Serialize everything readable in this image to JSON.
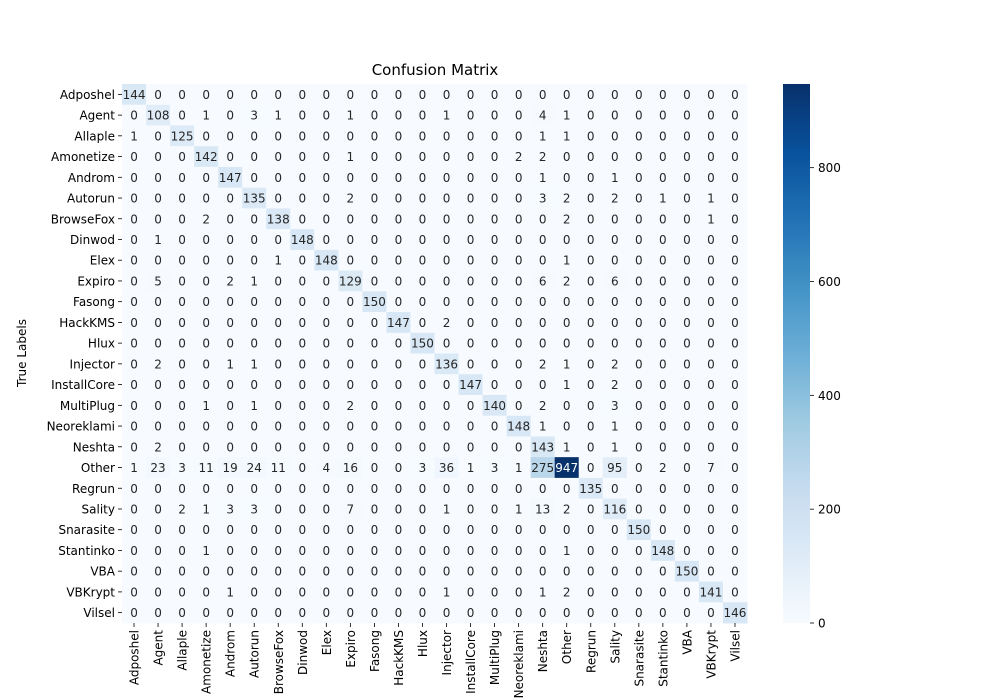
{
  "chart_data": {
    "type": "heatmap",
    "title": "Confusion Matrix",
    "ylabel": "True Labels",
    "xlabel": "",
    "labels": [
      "Adposhel",
      "Agent",
      "Allaple",
      "Amonetize",
      "Androm",
      "Autorun",
      "BrowseFox",
      "Dinwod",
      "Elex",
      "Expiro",
      "Fasong",
      "HackKMS",
      "Hlux",
      "Injector",
      "InstallCore",
      "MultiPlug",
      "Neoreklami",
      "Neshta",
      "Other",
      "Regrun",
      "Sality",
      "Snarasite",
      "Stantinko",
      "VBA",
      "VBKrypt",
      "Vilsel"
    ],
    "x_tick_labels": [
      "Adposhel",
      "Agent",
      "Allaple",
      "Amonetize",
      "Androm",
      "Autorun",
      "BrowseFox",
      "Dinwod",
      "Elex",
      "Expiro",
      "Fasong",
      "HackKMS",
      "Hlux",
      "Injector",
      "InstallCore",
      "MultiPlug",
      "Neoreklami",
      "Neshta",
      "Other",
      "Regrun",
      "Sality",
      "Snarasite",
      "Stantinko",
      "VBA",
      "VBKrypt",
      "Vilsel"
    ],
    "matrix": [
      [
        144,
        0,
        0,
        0,
        0,
        0,
        0,
        0,
        0,
        0,
        0,
        0,
        0,
        0,
        0,
        0,
        0,
        0,
        0,
        0,
        0,
        0,
        0,
        0,
        0,
        0
      ],
      [
        0,
        108,
        0,
        1,
        0,
        3,
        1,
        0,
        0,
        1,
        0,
        0,
        0,
        1,
        0,
        0,
        0,
        4,
        1,
        0,
        0,
        0,
        0,
        0,
        0,
        0
      ],
      [
        1,
        0,
        125,
        0,
        0,
        0,
        0,
        0,
        0,
        0,
        0,
        0,
        0,
        0,
        0,
        0,
        0,
        1,
        1,
        0,
        0,
        0,
        0,
        0,
        0,
        0
      ],
      [
        0,
        0,
        0,
        142,
        0,
        0,
        0,
        0,
        0,
        1,
        0,
        0,
        0,
        0,
        0,
        0,
        2,
        2,
        0,
        0,
        0,
        0,
        0,
        0,
        0,
        0
      ],
      [
        0,
        0,
        0,
        0,
        147,
        0,
        0,
        0,
        0,
        0,
        0,
        0,
        0,
        0,
        0,
        0,
        0,
        1,
        0,
        0,
        1,
        0,
        0,
        0,
        0,
        0
      ],
      [
        0,
        0,
        0,
        0,
        0,
        135,
        0,
        0,
        0,
        2,
        0,
        0,
        0,
        0,
        0,
        0,
        0,
        3,
        2,
        0,
        2,
        0,
        1,
        0,
        1,
        0
      ],
      [
        0,
        0,
        0,
        2,
        0,
        0,
        138,
        0,
        0,
        0,
        0,
        0,
        0,
        0,
        0,
        0,
        0,
        0,
        2,
        0,
        0,
        0,
        0,
        0,
        1,
        0
      ],
      [
        0,
        1,
        0,
        0,
        0,
        0,
        0,
        148,
        0,
        0,
        0,
        0,
        0,
        0,
        0,
        0,
        0,
        0,
        0,
        0,
        0,
        0,
        0,
        0,
        0,
        0
      ],
      [
        0,
        0,
        0,
        0,
        0,
        0,
        1,
        0,
        148,
        0,
        0,
        0,
        0,
        0,
        0,
        0,
        0,
        0,
        1,
        0,
        0,
        0,
        0,
        0,
        0,
        0
      ],
      [
        0,
        5,
        0,
        0,
        2,
        1,
        0,
        0,
        0,
        129,
        0,
        0,
        0,
        0,
        0,
        0,
        0,
        6,
        2,
        0,
        6,
        0,
        0,
        0,
        0,
        0
      ],
      [
        0,
        0,
        0,
        0,
        0,
        0,
        0,
        0,
        0,
        0,
        150,
        0,
        0,
        0,
        0,
        0,
        0,
        0,
        0,
        0,
        0,
        0,
        0,
        0,
        0,
        0
      ],
      [
        0,
        0,
        0,
        0,
        0,
        0,
        0,
        0,
        0,
        0,
        0,
        147,
        0,
        2,
        0,
        0,
        0,
        0,
        0,
        0,
        0,
        0,
        0,
        0,
        0,
        0
      ],
      [
        0,
        0,
        0,
        0,
        0,
        0,
        0,
        0,
        0,
        0,
        0,
        0,
        150,
        0,
        0,
        0,
        0,
        0,
        0,
        0,
        0,
        0,
        0,
        0,
        0,
        0
      ],
      [
        0,
        2,
        0,
        0,
        1,
        1,
        0,
        0,
        0,
        0,
        0,
        0,
        0,
        136,
        0,
        0,
        0,
        2,
        1,
        0,
        2,
        0,
        0,
        0,
        0,
        0
      ],
      [
        0,
        0,
        0,
        0,
        0,
        0,
        0,
        0,
        0,
        0,
        0,
        0,
        0,
        0,
        147,
        0,
        0,
        0,
        1,
        0,
        2,
        0,
        0,
        0,
        0,
        0
      ],
      [
        0,
        0,
        0,
        1,
        0,
        1,
        0,
        0,
        0,
        2,
        0,
        0,
        0,
        0,
        0,
        140,
        0,
        2,
        0,
        0,
        3,
        0,
        0,
        0,
        0,
        0
      ],
      [
        0,
        0,
        0,
        0,
        0,
        0,
        0,
        0,
        0,
        0,
        0,
        0,
        0,
        0,
        0,
        0,
        148,
        1,
        0,
        0,
        1,
        0,
        0,
        0,
        0,
        0
      ],
      [
        0,
        2,
        0,
        0,
        0,
        0,
        0,
        0,
        0,
        0,
        0,
        0,
        0,
        0,
        0,
        0,
        0,
        143,
        1,
        0,
        1,
        0,
        0,
        0,
        0,
        0
      ],
      [
        1,
        23,
        3,
        11,
        19,
        24,
        11,
        0,
        4,
        16,
        0,
        0,
        3,
        36,
        1,
        3,
        1,
        275,
        947,
        0,
        95,
        0,
        2,
        0,
        7,
        0
      ],
      [
        0,
        0,
        0,
        0,
        0,
        0,
        0,
        0,
        0,
        0,
        0,
        0,
        0,
        0,
        0,
        0,
        0,
        0,
        0,
        135,
        0,
        0,
        0,
        0,
        0,
        0
      ],
      [
        0,
        0,
        2,
        1,
        3,
        3,
        0,
        0,
        0,
        7,
        0,
        0,
        0,
        1,
        0,
        0,
        1,
        13,
        2,
        0,
        116,
        0,
        0,
        0,
        0,
        0
      ],
      [
        0,
        0,
        0,
        0,
        0,
        0,
        0,
        0,
        0,
        0,
        0,
        0,
        0,
        0,
        0,
        0,
        0,
        0,
        0,
        0,
        0,
        150,
        0,
        0,
        0,
        0
      ],
      [
        0,
        0,
        0,
        1,
        0,
        0,
        0,
        0,
        0,
        0,
        0,
        0,
        0,
        0,
        0,
        0,
        0,
        0,
        1,
        0,
        0,
        0,
        148,
        0,
        0,
        0
      ],
      [
        0,
        0,
        0,
        0,
        0,
        0,
        0,
        0,
        0,
        0,
        0,
        0,
        0,
        0,
        0,
        0,
        0,
        0,
        0,
        0,
        0,
        0,
        0,
        150,
        0,
        0
      ],
      [
        0,
        0,
        0,
        0,
        1,
        0,
        0,
        0,
        0,
        0,
        0,
        0,
        0,
        1,
        0,
        0,
        0,
        1,
        2,
        0,
        0,
        0,
        0,
        0,
        141,
        0
      ],
      [
        0,
        0,
        0,
        0,
        0,
        0,
        0,
        0,
        0,
        0,
        0,
        0,
        0,
        0,
        0,
        0,
        0,
        0,
        0,
        0,
        0,
        0,
        0,
        0,
        0,
        146
      ]
    ],
    "colorbar": {
      "colormap": "Blues",
      "min": 0,
      "max": 947,
      "ticks": [
        0,
        200,
        400,
        600,
        800
      ]
    },
    "annotations": true,
    "grid": false
  }
}
